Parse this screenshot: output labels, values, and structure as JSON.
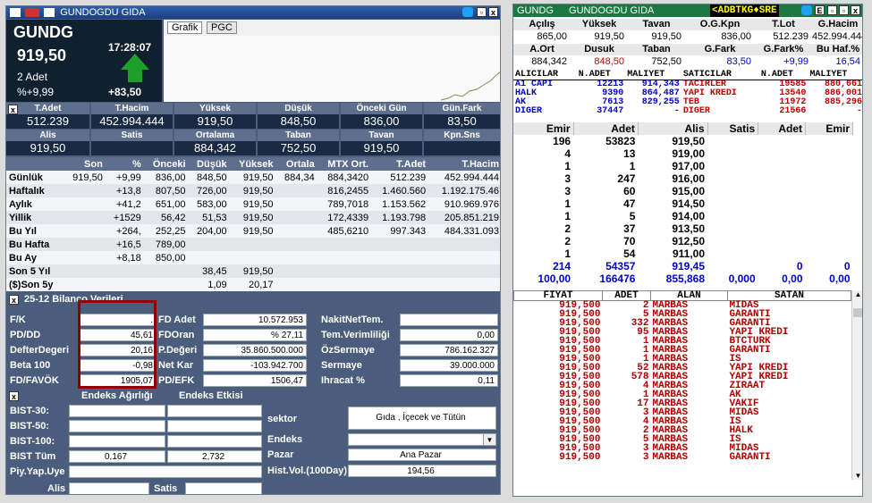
{
  "left_title": "GUNDOGDU GIDA",
  "quote": {
    "symbol": "GUNDG",
    "price": "919,50",
    "time": "17:28:07",
    "lots": "2 Adet",
    "pct": "%+9,99",
    "change": "+83,50"
  },
  "chart_tabs": [
    "Grafik",
    "PGC"
  ],
  "summary1": {
    "headers": [
      "T.Adet",
      "T.Hacim",
      "Yüksek",
      "Düşük",
      "Önceki Gün",
      "Gün.Fark"
    ],
    "values": [
      "512.239",
      "452.994.444",
      "919,50",
      "848,50",
      "836,00",
      "83,50"
    ]
  },
  "summary2": {
    "headers": [
      "Alis",
      "Satis",
      "Ortalama",
      "Taban",
      "Tavan",
      "Kpn.Sns"
    ],
    "values": [
      "919,50",
      "",
      "884,342",
      "752,50",
      "919,50",
      ""
    ]
  },
  "periods": {
    "headers": [
      "",
      "Son",
      "%",
      "Önceki",
      "Düşük",
      "Yüksek",
      "Ortala",
      "MTX Ort.",
      "T.Adet",
      "T.Hacim"
    ],
    "rows": [
      [
        "Günlük",
        "919,50",
        "+9,99",
        "836,00",
        "848,50",
        "919,50",
        "884,34",
        "884,3420",
        "512.239",
        "452.994.444"
      ],
      [
        "Haftalık",
        "",
        "+13,8",
        "807,50",
        "726,00",
        "919,50",
        "",
        "816,2455",
        "1.460.560",
        "1.192.175.46"
      ],
      [
        "Aylık",
        "",
        "+41,2",
        "651,00",
        "583,00",
        "919,50",
        "",
        "789,7018",
        "1.153.562",
        "910.969.976"
      ],
      [
        "Yillik",
        "",
        "+1529",
        "56,42",
        "51,53",
        "919,50",
        "",
        "172,4339",
        "1.193.798",
        "205.851.219"
      ],
      [
        "Bu Yıl",
        "",
        "+264,",
        "252,25",
        "204,00",
        "919,50",
        "",
        "485,6210",
        "997.343",
        "484.331.093"
      ],
      [
        "Bu Hafta",
        "",
        "+16,5",
        "789,00",
        "",
        "",
        "",
        "",
        "",
        ""
      ],
      [
        "Bu Ay",
        "",
        "+8,18",
        "850,00",
        "",
        "",
        "",
        "",
        "",
        ""
      ],
      [
        "Son 5 Yıl",
        "",
        "",
        "",
        "38,45",
        "919,50",
        "",
        "",
        "",
        ""
      ],
      [
        "($)Son 5y",
        "",
        "",
        "",
        "1,09",
        "20,17",
        "",
        "",
        "",
        ""
      ]
    ]
  },
  "balance": {
    "title": "25-12 Bilanço Verileri",
    "col1": [
      [
        "F/K",
        "."
      ],
      [
        "PD/DD",
        "45,61"
      ],
      [
        "DefterDegeri",
        "20,16"
      ],
      [
        "Beta 100",
        "-0,98"
      ],
      [
        "FD/FAVÖK",
        "1905,07"
      ]
    ],
    "col2": [
      [
        "FD Adet",
        "10.572.953"
      ],
      [
        "FDOran",
        "% 27,11"
      ],
      [
        "P.Değeri",
        "35.860.500.000"
      ],
      [
        "Net Kar",
        "-103.942.700"
      ],
      [
        "PD/EFK",
        "1506,47"
      ]
    ],
    "col3": [
      [
        "NakitNetTem.",
        ""
      ],
      [
        "Tem.Verimliliği",
        "0,00"
      ],
      [
        "ÖzSermaye",
        "786.162.327"
      ],
      [
        "Sermaye",
        "39.000.000"
      ],
      [
        "Ihracat %",
        "0,11"
      ]
    ]
  },
  "index": {
    "header1": "Endeks Ağırlığı",
    "header2": "Endeks Etkisi",
    "rows": [
      [
        "BIST-30:",
        "",
        ""
      ],
      [
        "BIST-50:",
        "",
        ""
      ],
      [
        "BIST-100:",
        "",
        ""
      ],
      [
        "BIST Tüm",
        "0,167",
        "2,732"
      ],
      [
        "Piy.Yap.Uye",
        "",
        ""
      ]
    ],
    "alis": "Alis",
    "satis": "Satis",
    "right": [
      [
        "sektor",
        "Gıda , İçecek ve Tütün"
      ],
      [
        "Endeks",
        ""
      ],
      [
        "Pazar",
        "Ana Pazar"
      ],
      [
        "Hist.Vol.(100Day)",
        "194,56"
      ]
    ]
  },
  "right_title": {
    "symbol": "GUNDG",
    "name": "GUNDOGDU GIDA",
    "ticker": "<ADBTKG♦SRE"
  },
  "rq": {
    "h1": [
      "Açılış",
      "Yüksek",
      "Tavan",
      "O.G.Kpn",
      "T.Lot",
      "G.Hacim"
    ],
    "v1": [
      "865,00",
      "919,50",
      "919,50",
      "836,00",
      "512.239",
      "452.994.444"
    ],
    "h2": [
      "A.Ort",
      "Dusuk",
      "Taban",
      "G.Fark",
      "G.Fark%",
      "Bu Haf.%"
    ],
    "v2": [
      "884,342",
      "848,50",
      "752,50",
      "83,50",
      "+9,99",
      "16,54"
    ]
  },
  "brokers": {
    "headers": [
      "ALICILAR",
      "N.ADET",
      "MALIYET",
      "SATICILAR",
      "N.ADET",
      "MALIYET"
    ],
    "rows": [
      [
        "A1 CAPI",
        "12213",
        "914,343",
        "TACIRLER",
        "19585",
        "880,661"
      ],
      [
        "HALK",
        "9390",
        "864,487",
        "YAPI KREDI",
        "13540",
        "886,001"
      ],
      [
        "AK",
        "7613",
        "829,255",
        "TEB",
        "11972",
        "885,296"
      ],
      [
        "DIGER",
        "37447",
        "-",
        "DIGER",
        "21566",
        "-"
      ]
    ]
  },
  "depth": {
    "headers": [
      "Emir",
      "Adet",
      "Alis",
      "Satis",
      "Adet",
      "Emir"
    ],
    "rows": [
      [
        "196",
        "53823",
        "919,50",
        "",
        "",
        ""
      ],
      [
        "4",
        "13",
        "919,00",
        "",
        "",
        ""
      ],
      [
        "1",
        "1",
        "917,00",
        "",
        "",
        ""
      ],
      [
        "3",
        "247",
        "916,00",
        "",
        "",
        ""
      ],
      [
        "3",
        "60",
        "915,00",
        "",
        "",
        ""
      ],
      [
        "1",
        "47",
        "914,50",
        "",
        "",
        ""
      ],
      [
        "1",
        "5",
        "914,00",
        "",
        "",
        ""
      ],
      [
        "2",
        "37",
        "913,50",
        "",
        "",
        ""
      ],
      [
        "2",
        "70",
        "912,50",
        "",
        "",
        ""
      ],
      [
        "1",
        "54",
        "911,00",
        "",
        "",
        ""
      ]
    ],
    "tot1": [
      "214",
      "54357",
      "919,45",
      "",
      "0",
      "0"
    ],
    "tot2": [
      "100,00",
      "166476",
      "855,868",
      "0,000",
      "0,00",
      "0,00"
    ]
  },
  "trades": {
    "headers": [
      "FIYAT",
      "ADET",
      "ALAN",
      "SATAN"
    ],
    "rows": [
      [
        "919,500",
        "2",
        "MARBAS",
        "MIDAS"
      ],
      [
        "919,500",
        "5",
        "MARBAS",
        "GARANTI"
      ],
      [
        "919,500",
        "332",
        "MARBAS",
        "GARANTI"
      ],
      [
        "919,500",
        "95",
        "MARBAS",
        "YAPI KREDI"
      ],
      [
        "919,500",
        "1",
        "MARBAS",
        "BTCTURK"
      ],
      [
        "919,500",
        "1",
        "MARBAS",
        "GARANTI"
      ],
      [
        "919,500",
        "1",
        "MARBAS",
        "IS"
      ],
      [
        "919,500",
        "52",
        "MARBAS",
        "YAPI KREDI"
      ],
      [
        "919,500",
        "578",
        "MARBAS",
        "YAPI KREDI"
      ],
      [
        "919,500",
        "4",
        "MARBAS",
        "ZIRAAT"
      ],
      [
        "919,500",
        "1",
        "MARBAS",
        "AK"
      ],
      [
        "919,500",
        "17",
        "MARBAS",
        "VAKIF"
      ],
      [
        "919,500",
        "3",
        "MARBAS",
        "MIDAS"
      ],
      [
        "919,500",
        "4",
        "MARBAS",
        "IS"
      ],
      [
        "919,500",
        "2",
        "MARBAS",
        "HALK"
      ],
      [
        "919,500",
        "5",
        "MARBAS",
        "IS"
      ],
      [
        "919,500",
        "3",
        "MARBAS",
        "MIDAS"
      ],
      [
        "919,500",
        "3",
        "MARBAS",
        "GARANTI"
      ]
    ]
  }
}
